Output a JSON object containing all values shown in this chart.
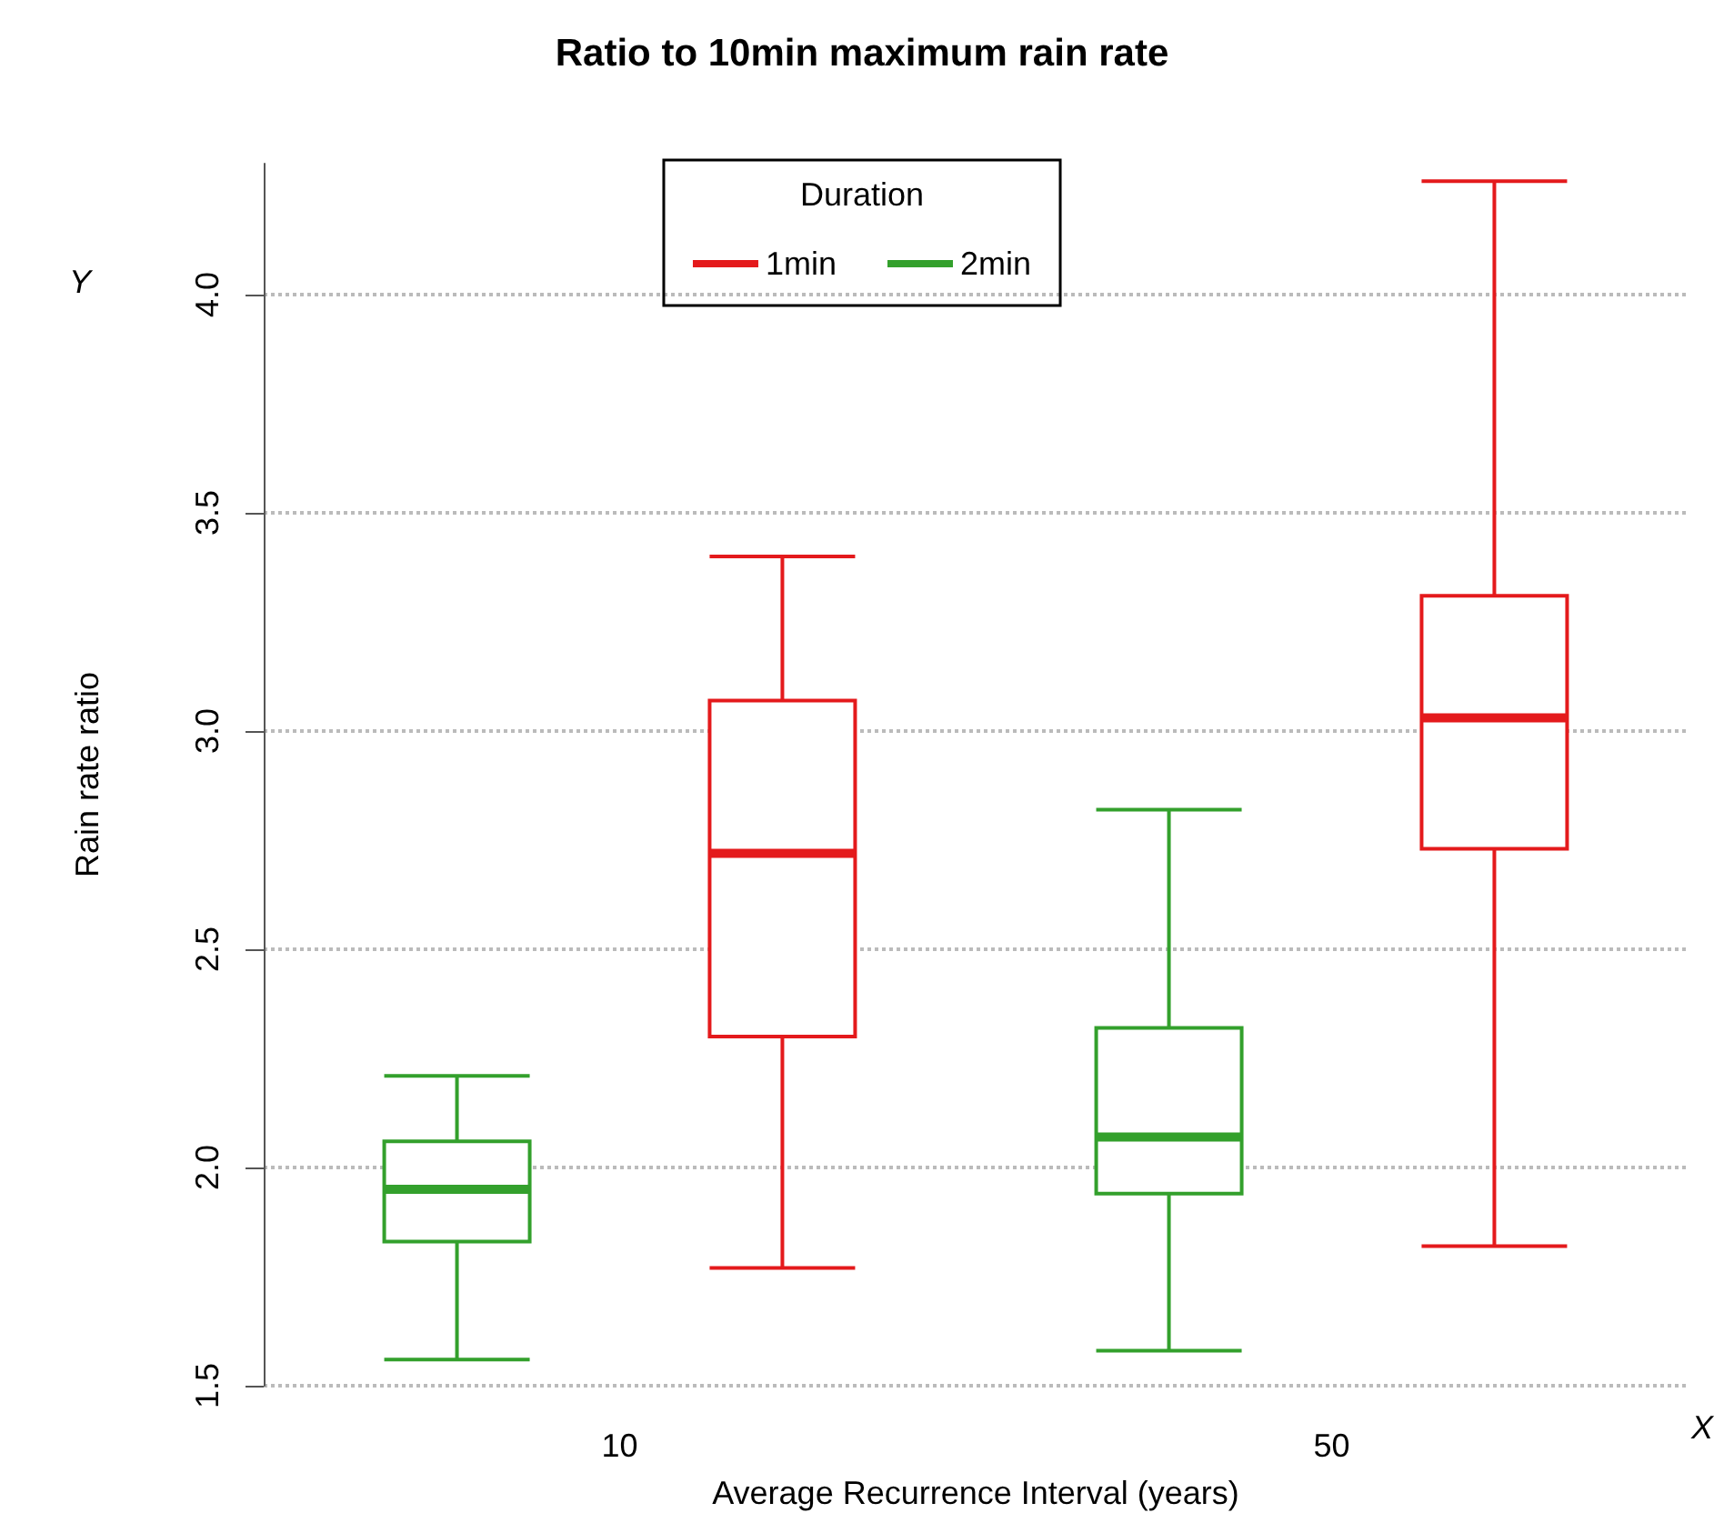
{
  "chart_data": {
    "type": "box",
    "title": "Ratio to 10min maximum rain rate",
    "xlabel": "Average Recurrence Interval (years)",
    "ylabel": "Rain rate ratio",
    "legend_title": "Duration",
    "annotations": [
      "Y",
      "X"
    ],
    "categories": [
      "10",
      "50"
    ],
    "series": [
      {
        "name": "1min",
        "color": "#e41a1c",
        "boxes": [
          {
            "low": 1.77,
            "q1": 2.3,
            "median": 2.72,
            "q3": 3.07,
            "high": 3.4
          },
          {
            "low": 1.82,
            "q1": 2.73,
            "median": 3.03,
            "q3": 3.31,
            "high": 4.26
          }
        ]
      },
      {
        "name": "2min",
        "color": "#33a02c",
        "boxes": [
          {
            "low": 1.56,
            "q1": 1.83,
            "median": 1.95,
            "q3": 2.06,
            "high": 2.21
          },
          {
            "low": 1.58,
            "q1": 1.94,
            "median": 2.07,
            "q3": 2.32,
            "high": 2.82
          }
        ]
      }
    ],
    "ylim": [
      1.5,
      4.3
    ],
    "yticks": [
      1.5,
      {
        "value": 2,
        "label": "2.0"
      },
      2.5,
      {
        "value": 3,
        "label": "3.0"
      },
      3.5,
      {
        "value": 4,
        "label": "4.0"
      }
    ],
    "grid": "y",
    "legend": "top"
  }
}
